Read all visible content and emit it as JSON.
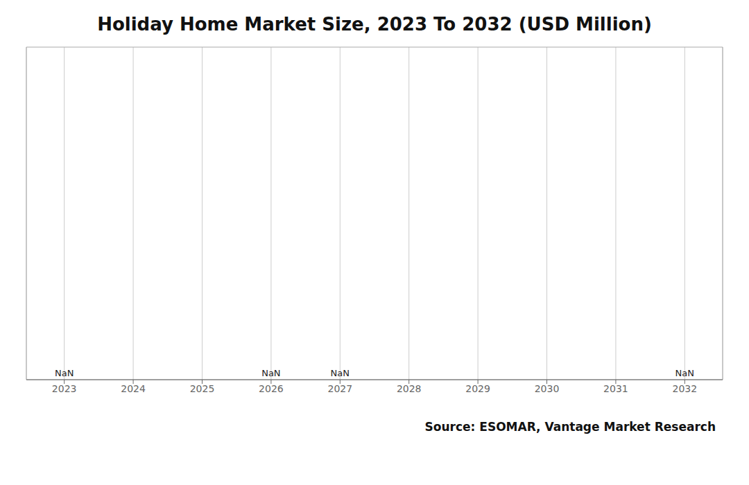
{
  "chart_data": {
    "type": "line",
    "title": "Holiday Home Market Size, 2023 To 2032 (USD Million)",
    "x": [
      2023,
      2024,
      2025,
      2026,
      2027,
      2028,
      2029,
      2030,
      2031,
      2032
    ],
    "values": [
      null,
      null,
      null,
      null,
      null,
      null,
      null,
      null,
      null,
      null
    ],
    "xlim": [
      2022.45,
      2032.55
    ],
    "xticks": [
      2023,
      2024,
      2025,
      2026,
      2027,
      2028,
      2029,
      2030,
      2031,
      2032
    ],
    "ylim": [
      0,
      1
    ],
    "yticks": [],
    "grid": "x",
    "tick_labels": "x",
    "annotations": [
      {
        "x": 2023,
        "text": "NaN"
      },
      {
        "x": 2026,
        "text": "NaN"
      },
      {
        "x": 2027,
        "text": "NaN"
      },
      {
        "x": 2032,
        "text": "NaN"
      },
      {
        "text": "Source: ESOMAR, Vantage Market Research"
      }
    ]
  }
}
